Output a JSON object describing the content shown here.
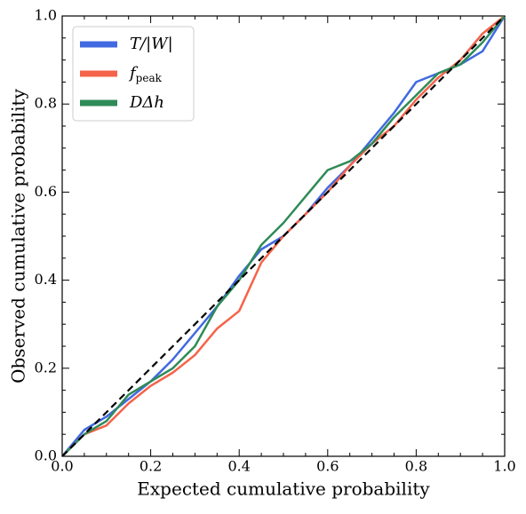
{
  "chart_data": {
    "type": "line",
    "xlabel": "Expected cumulative probability",
    "ylabel": "Observed cumulative probability",
    "x": [
      0,
      0.05,
      0.1,
      0.15,
      0.2,
      0.25,
      0.3,
      0.35,
      0.4,
      0.45,
      0.5,
      0.55,
      0.6,
      0.65,
      0.7,
      0.75,
      0.8,
      0.85,
      0.9,
      0.95,
      1
    ],
    "series": [
      {
        "name": "T/|W|",
        "color": "#4169e1",
        "values": [
          0,
          0.06,
          0.09,
          0.13,
          0.17,
          0.22,
          0.28,
          0.34,
          0.41,
          0.47,
          0.5,
          0.55,
          0.61,
          0.66,
          0.72,
          0.78,
          0.85,
          0.87,
          0.89,
          0.92,
          1
        ]
      },
      {
        "name": "f_peak",
        "color": "#f4634a",
        "values": [
          0,
          0.05,
          0.07,
          0.12,
          0.16,
          0.19,
          0.23,
          0.29,
          0.33,
          0.44,
          0.5,
          0.55,
          0.6,
          0.66,
          0.71,
          0.75,
          0.81,
          0.86,
          0.9,
          0.96,
          1
        ]
      },
      {
        "name": "DΔh",
        "color": "#2e8b57",
        "values": [
          0,
          0.05,
          0.08,
          0.14,
          0.17,
          0.2,
          0.25,
          0.34,
          0.4,
          0.48,
          0.53,
          0.59,
          0.65,
          0.67,
          0.71,
          0.77,
          0.82,
          0.87,
          0.89,
          0.94,
          1
        ]
      }
    ],
    "xlim": [
      0,
      1
    ],
    "ylim": [
      0,
      1
    ],
    "xticks": [
      {
        "value": 0,
        "label": "0.0"
      },
      0.2,
      0.4,
      0.6,
      0.8,
      {
        "value": 1,
        "label": "1.0"
      }
    ],
    "yticks": [
      {
        "value": 0,
        "label": "0.0"
      },
      0.2,
      0.4,
      0.6,
      0.8,
      {
        "value": 1,
        "label": "1.0"
      }
    ],
    "legend": "upper left",
    "reference_line": true
  }
}
